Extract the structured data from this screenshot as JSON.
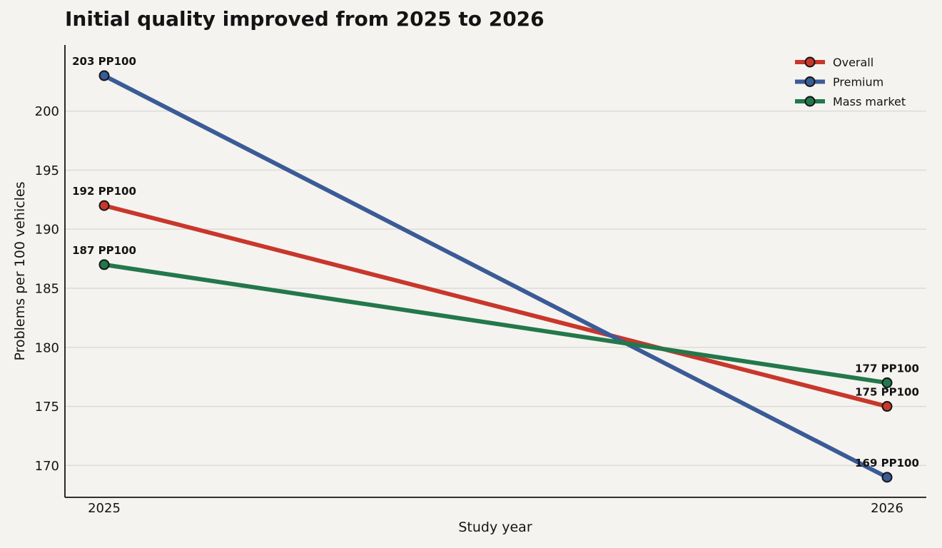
{
  "chart_data": {
    "type": "line",
    "title": "Initial quality improved from 2025 to 2026",
    "xlabel": "Study year",
    "ylabel": "Problems per 100 vehicles",
    "x": [
      "2025",
      "2026"
    ],
    "ylim": [
      167.3,
      205.6
    ],
    "yticks": [
      170,
      175,
      180,
      185,
      190,
      195,
      200
    ],
    "grid": "horizontal",
    "legend_position": "top-right",
    "label_suffix": " PP100",
    "series": [
      {
        "name": "Overall",
        "values": [
          192,
          175
        ],
        "color": "#c8372b"
      },
      {
        "name": "Premium",
        "values": [
          203,
          169
        ],
        "color": "#3b5b97"
      },
      {
        "name": "Mass market",
        "values": [
          187,
          177
        ],
        "color": "#23784b"
      }
    ]
  }
}
